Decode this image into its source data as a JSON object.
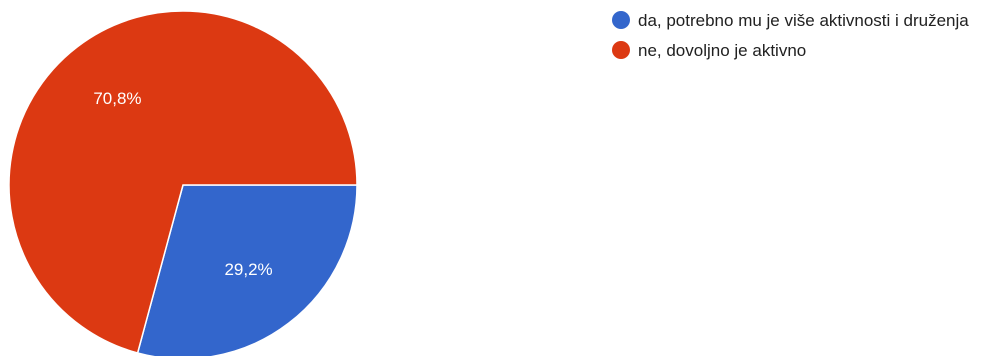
{
  "chart_data": {
    "type": "pie",
    "slices": [
      {
        "label": "da, potrebno mu je više aktivnosti i druženja",
        "value": 29.2,
        "display": "29,2%",
        "color": "#3366cc"
      },
      {
        "label": "ne, dovoljno je aktivno",
        "value": 70.8,
        "display": "70,8%",
        "color": "#dc3912"
      }
    ],
    "legend_position": "right",
    "start_angle_deg": 90,
    "direction": "clockwise"
  }
}
